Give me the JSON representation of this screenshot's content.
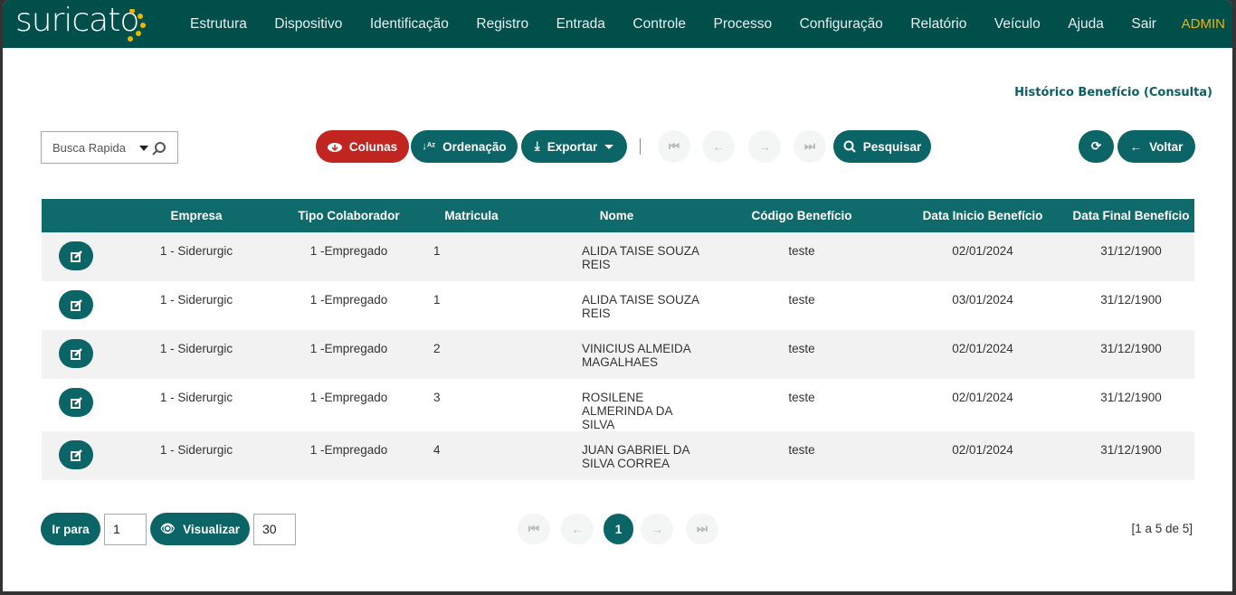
{
  "app": {
    "logo": "suricato",
    "admin": "ADMIN",
    "brand_color": "#004f4b",
    "accent": "#f0b400"
  },
  "menu": [
    "Estrutura",
    "Dispositivo",
    "Identificação",
    "Registro",
    "Entrada",
    "Controle",
    "Processo",
    "Configuração",
    "Relatório",
    "Veículo",
    "Ajuda",
    "Sair"
  ],
  "page_title": "Histórico Benefício (Consulta)",
  "toolbar": {
    "search_placeholder": "Busca Rapida",
    "colunas": "Colunas",
    "ordenacao": "Ordenação",
    "exportar": "Exportar",
    "pesquisar": "Pesquisar",
    "voltar": "Voltar"
  },
  "table": {
    "columns": [
      "",
      "Empresa",
      "Tipo Colaborador",
      "Matricula",
      "Nome",
      "Código Benefício",
      "Data Inicio Benefício",
      "Data Final Benefício"
    ],
    "rows": [
      [
        "1 - Siderurgic",
        "1 -Empregado",
        "1",
        "ALIDA TAISE SOUZA REIS",
        "teste",
        "02/01/2024",
        "31/12/1900"
      ],
      [
        "1 - Siderurgic",
        "1 -Empregado",
        "1",
        "ALIDA TAISE SOUZA REIS",
        "teste",
        "03/01/2024",
        "31/12/1900"
      ],
      [
        "1 - Siderurgic",
        "1 -Empregado",
        "2",
        "VINICIUS ALMEIDA MAGALHAES",
        "teste",
        "02/01/2024",
        "31/12/1900"
      ],
      [
        "1 - Siderurgic",
        "1 -Empregado",
        "3",
        "ROSILENE ALMERINDA DA SILVA",
        "teste",
        "02/01/2024",
        "31/12/1900"
      ],
      [
        "1 - Siderurgic",
        "1 -Empregado",
        "4",
        "JUAN GABRIEL DA SILVA CORREA",
        "teste",
        "02/01/2024",
        "31/12/1900"
      ]
    ]
  },
  "footer": {
    "ir_para": "Ir para",
    "ir_para_value": "1",
    "visualizar": "Visualizar",
    "page_size": "30",
    "current_page": "1",
    "range": "[1 a 5 de 5]"
  }
}
